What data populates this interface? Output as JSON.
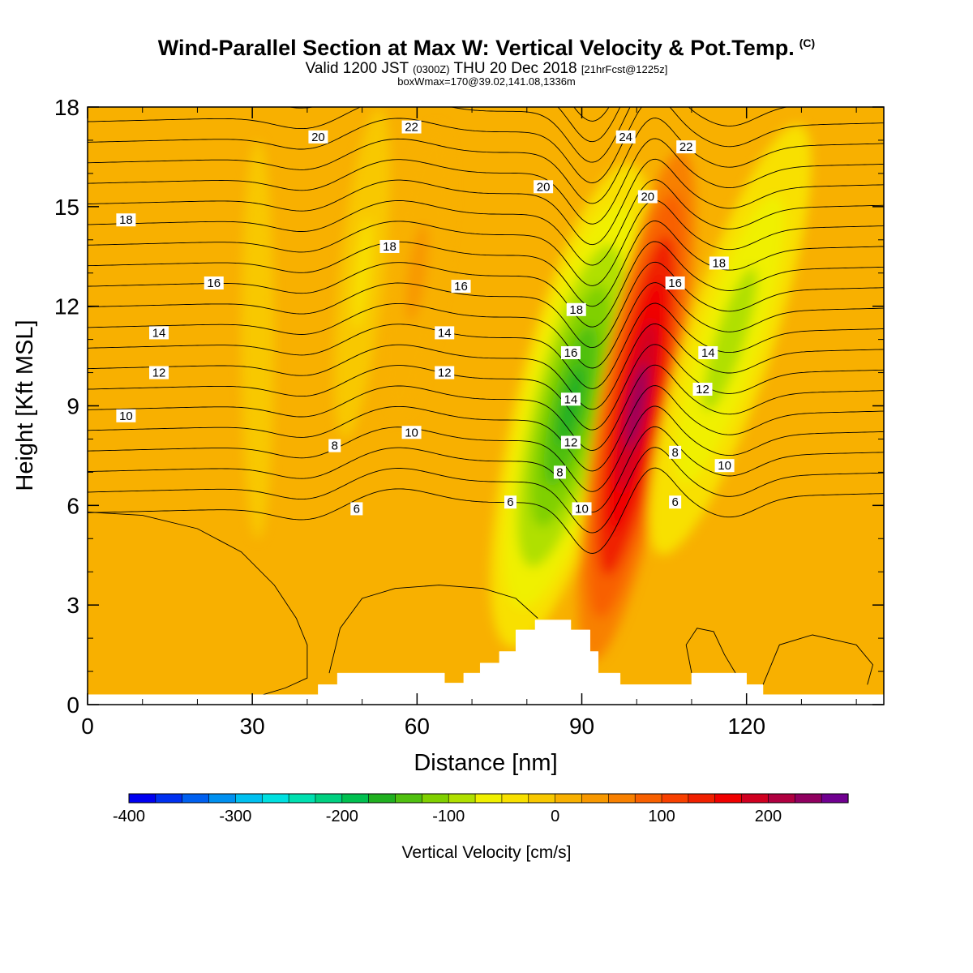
{
  "header": {
    "title": "Wind-Parallel Section at Max W: Vertical Velocity & Pot.Temp.",
    "copyright": "(C)",
    "valid_prefix": "Valid 1200 JST",
    "valid_utc": "(0300Z)",
    "valid_date": "THU 20 Dec 2018",
    "forecast": "[21hrFcst@1225z]",
    "box_info": "boxWmax=170@39.02,141.08,1336m"
  },
  "chart_data": {
    "type": "heatmap",
    "xlabel": "Distance [nm]",
    "ylabel": "Height [Kft MSL]",
    "xlim": [
      0,
      145
    ],
    "ylim": [
      0,
      18
    ],
    "x_ticks": [
      "0",
      "30",
      "60",
      "90",
      "120"
    ],
    "y_ticks": [
      "0",
      "3",
      "6",
      "9",
      "12",
      "15",
      "18"
    ],
    "colorbar": {
      "label": "Vertical Velocity [cm/s]",
      "min": -400,
      "max": 275,
      "step": 25,
      "tick_labels": [
        "-400",
        "-300",
        "-200",
        "-100",
        "0",
        "100",
        "200"
      ],
      "colors": [
        "#0000f0",
        "#0030f0",
        "#0060f0",
        "#0090f0",
        "#00c0f0",
        "#00e0e0",
        "#00e0b0",
        "#00d080",
        "#00c050",
        "#20b020",
        "#50c010",
        "#80d000",
        "#b0e000",
        "#f0f000",
        "#f8e000",
        "#f8c800",
        "#f8b000",
        "#f89800",
        "#f88000",
        "#f86000",
        "#f84000",
        "#f02000",
        "#f00000",
        "#d00020",
        "#b00040",
        "#900060",
        "#700090"
      ]
    },
    "vertical_velocity_features": [
      {
        "name": "downdraft",
        "x": 88,
        "y": 9,
        "value": -170
      },
      {
        "name": "updraft",
        "x": 100,
        "y": 9,
        "value": 230
      },
      {
        "name": "downdraft",
        "x": 117,
        "y": 11,
        "value": -90
      },
      {
        "name": "updraft",
        "x": 60,
        "y": 13,
        "value": 30
      },
      {
        "name": "downdraft",
        "x": 50,
        "y": 13,
        "value": -30
      },
      {
        "name": "downdraft",
        "x": 31,
        "y": 11,
        "value": -15
      }
    ],
    "theta_contour_labels": [
      {
        "text": "20",
        "x": 42,
        "y": 17.1
      },
      {
        "text": "22",
        "x": 59,
        "y": 17.4
      },
      {
        "text": "24",
        "x": 98,
        "y": 17.1
      },
      {
        "text": "22",
        "x": 109,
        "y": 16.8
      },
      {
        "text": "20",
        "x": 83,
        "y": 15.6
      },
      {
        "text": "20",
        "x": 102,
        "y": 15.3
      },
      {
        "text": "18",
        "x": 7,
        "y": 14.6
      },
      {
        "text": "18",
        "x": 55,
        "y": 13.8
      },
      {
        "text": "18",
        "x": 115,
        "y": 13.3
      },
      {
        "text": "16",
        "x": 23,
        "y": 12.7
      },
      {
        "text": "16",
        "x": 68,
        "y": 12.6
      },
      {
        "text": "16",
        "x": 107,
        "y": 12.7
      },
      {
        "text": "18",
        "x": 89,
        "y": 11.9
      },
      {
        "text": "14",
        "x": 13,
        "y": 11.2
      },
      {
        "text": "14",
        "x": 65,
        "y": 11.2
      },
      {
        "text": "16",
        "x": 88,
        "y": 10.6
      },
      {
        "text": "14",
        "x": 113,
        "y": 10.6
      },
      {
        "text": "12",
        "x": 13,
        "y": 10.0
      },
      {
        "text": "12",
        "x": 65,
        "y": 10.0
      },
      {
        "text": "12",
        "x": 112,
        "y": 9.5
      },
      {
        "text": "14",
        "x": 88,
        "y": 9.2
      },
      {
        "text": "10",
        "x": 7,
        "y": 8.7
      },
      {
        "text": "10",
        "x": 59,
        "y": 8.2
      },
      {
        "text": "8",
        "x": 45,
        "y": 7.8
      },
      {
        "text": "12",
        "x": 88,
        "y": 7.9
      },
      {
        "text": "8",
        "x": 107,
        "y": 7.6
      },
      {
        "text": "10",
        "x": 116,
        "y": 7.2
      },
      {
        "text": "8",
        "x": 86,
        "y": 7.0
      },
      {
        "text": "6",
        "x": 49,
        "y": 5.9
      },
      {
        "text": "6",
        "x": 77,
        "y": 6.1
      },
      {
        "text": "10",
        "x": 90,
        "y": 5.9
      },
      {
        "text": "6",
        "x": 107,
        "y": 6.1
      }
    ],
    "terrain": [
      [
        0,
        0.3
      ],
      [
        30,
        0.3
      ],
      [
        42,
        0.3
      ],
      [
        42,
        0.6
      ],
      [
        45.5,
        0.6
      ],
      [
        45.5,
        0.95
      ],
      [
        65,
        0.95
      ],
      [
        65,
        0.65
      ],
      [
        68.5,
        0.65
      ],
      [
        68.5,
        0.95
      ],
      [
        71.5,
        0.95
      ],
      [
        71.5,
        1.25
      ],
      [
        75,
        1.25
      ],
      [
        75,
        1.6
      ],
      [
        78,
        1.6
      ],
      [
        78,
        2.25
      ],
      [
        81.5,
        2.25
      ],
      [
        81.5,
        2.55
      ],
      [
        88,
        2.55
      ],
      [
        88,
        2.25
      ],
      [
        91.5,
        2.25
      ],
      [
        91.5,
        1.6
      ],
      [
        93,
        1.6
      ],
      [
        93,
        0.95
      ],
      [
        97,
        0.95
      ],
      [
        97,
        0.6
      ],
      [
        110,
        0.6
      ],
      [
        110,
        0.95
      ],
      [
        120,
        0.95
      ],
      [
        120,
        0.6
      ],
      [
        123,
        0.6
      ],
      [
        123,
        0.3
      ],
      [
        145,
        0.3
      ]
    ]
  }
}
